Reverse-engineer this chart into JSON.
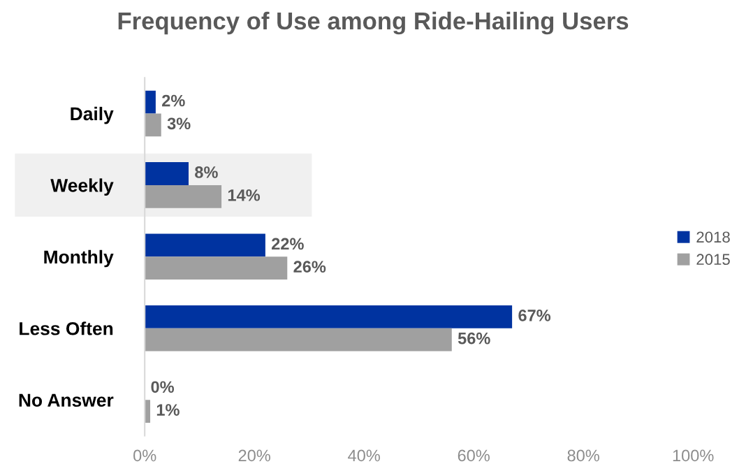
{
  "chart_data": {
    "type": "bar",
    "orientation": "horizontal",
    "title": "Frequency of Use among Ride-Hailing Users",
    "categories": [
      "Daily",
      "Weekly",
      "Monthly",
      "Less Often",
      "No Answer"
    ],
    "series": [
      {
        "name": "2018",
        "color": "#0033a0",
        "values": [
          2,
          8,
          22,
          67,
          0
        ],
        "value_labels": [
          "2%",
          "8%",
          "22%",
          "67%",
          "0%"
        ]
      },
      {
        "name": "2015",
        "color": "#a0a0a0",
        "values": [
          3,
          14,
          26,
          56,
          1
        ],
        "value_labels": [
          "3%",
          "14%",
          "26%",
          "56%",
          "1%"
        ]
      }
    ],
    "xlim": [
      0,
      100
    ],
    "xticks": [
      {
        "value": 0,
        "label": "0%"
      },
      {
        "value": 20,
        "label": "20%"
      },
      {
        "value": 40,
        "label": "40%"
      },
      {
        "value": 60,
        "label": "60%"
      },
      {
        "value": 80,
        "label": "80%"
      },
      {
        "value": 100,
        "label": "100%"
      }
    ],
    "bands": [
      {
        "axis": "y",
        "from": "Weekly",
        "to": "Weekly",
        "color": "#f0f0f0"
      }
    ],
    "grid": false,
    "legend": "right"
  }
}
